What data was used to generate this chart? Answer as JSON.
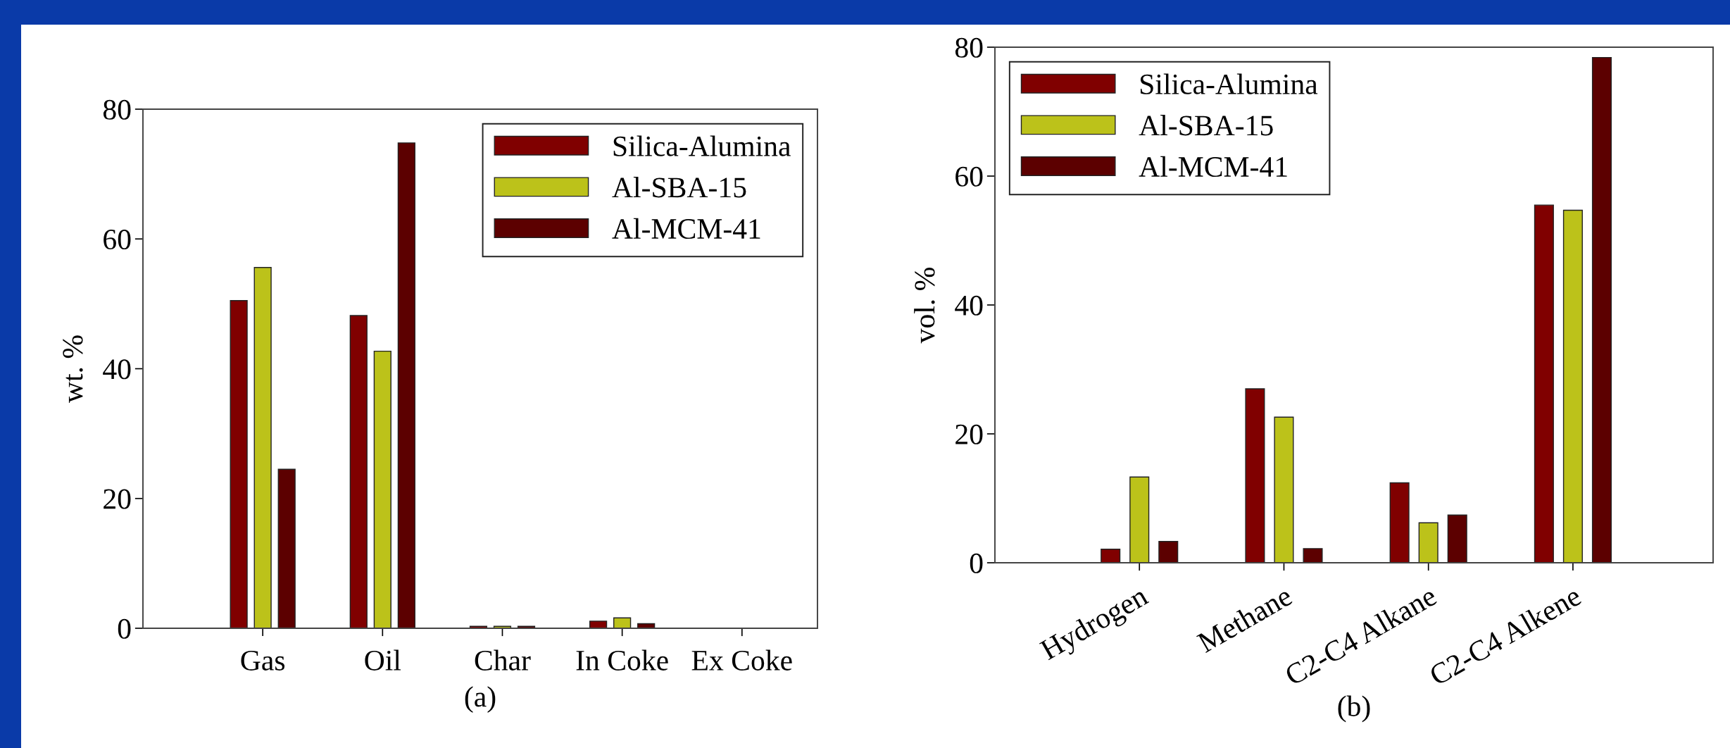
{
  "chart_data": [
    {
      "type": "bar",
      "xlabel": "(a)",
      "ylabel": "wt. %",
      "categories": [
        "Gas",
        "Oil",
        "Char",
        "In Coke",
        "Ex Coke"
      ],
      "ylim": [
        0,
        80
      ],
      "yticks": [
        0,
        20,
        40,
        60,
        80
      ],
      "legend": "top right",
      "grid": false,
      "series": [
        {
          "name": "Silica-Alumina",
          "color": "#800000",
          "values": [
            50.5,
            48.2,
            0.3,
            1.1,
            null
          ]
        },
        {
          "name": "Al-SBA-15",
          "color": "#bcc21a",
          "values": [
            55.6,
            42.7,
            0.3,
            1.6,
            null
          ]
        },
        {
          "name": "Al-MCM-41",
          "color": "#5c0000",
          "values": [
            24.5,
            74.8,
            0.3,
            0.7,
            null
          ]
        }
      ]
    },
    {
      "type": "bar",
      "xlabel": "(b)",
      "ylabel": "vol. %",
      "categories": [
        "Hydrogen",
        "Methane",
        "C2-C4 Alkane",
        "C2-C4 Alkene"
      ],
      "ylim": [
        0,
        80
      ],
      "yticks": [
        0,
        20,
        40,
        60,
        80
      ],
      "legend": "top left",
      "grid": false,
      "series": [
        {
          "name": "Silica-Alumina",
          "color": "#800000",
          "values": [
            2.1,
            27.0,
            12.4,
            55.5
          ]
        },
        {
          "name": "Al-SBA-15",
          "color": "#bcc21a",
          "values": [
            13.3,
            22.6,
            6.2,
            54.7
          ]
        },
        {
          "name": "Al-MCM-41",
          "color": "#5c0000",
          "values": [
            3.3,
            2.2,
            7.4,
            78.4
          ]
        }
      ]
    }
  ]
}
